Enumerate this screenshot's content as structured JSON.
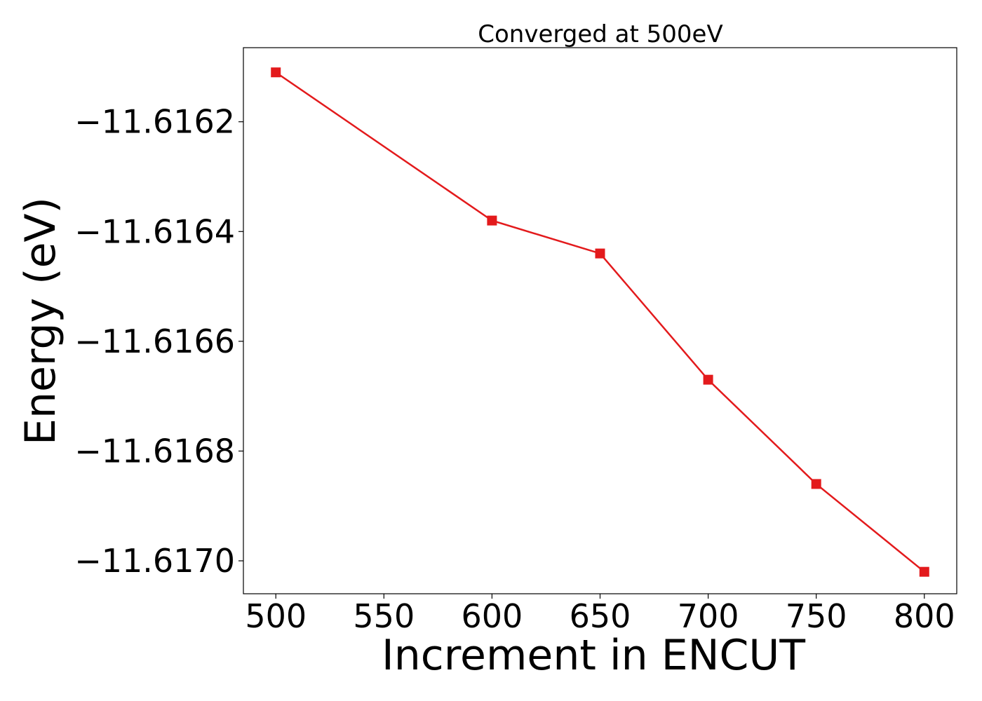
{
  "chart_data": {
    "type": "line",
    "title": "Converged at 500eV",
    "xlabel": "Increment in ENCUT",
    "ylabel": "Energy (eV)",
    "x": [
      500,
      600,
      650,
      700,
      750,
      800
    ],
    "series": [
      {
        "values": [
          -11.61611,
          -11.61638,
          -11.61644,
          -11.61667,
          -11.61686,
          -11.61702
        ],
        "color": "#e31a1c",
        "marker": "square"
      }
    ],
    "xlim": [
      485,
      815
    ],
    "ylim": [
      -11.61706,
      -11.616065
    ],
    "xticks": [
      500,
      550,
      600,
      650,
      700,
      750,
      800
    ],
    "xtick_labels": [
      "500",
      "550",
      "600",
      "650",
      "700",
      "750",
      "800"
    ],
    "yticks": [
      -11.6162,
      -11.6164,
      -11.6166,
      -11.6168,
      -11.617
    ],
    "ytick_labels": [
      "−11.6162",
      "−11.6164",
      "−11.6166",
      "−11.6168",
      "−11.6170"
    ],
    "grid": false,
    "legend": "none"
  }
}
